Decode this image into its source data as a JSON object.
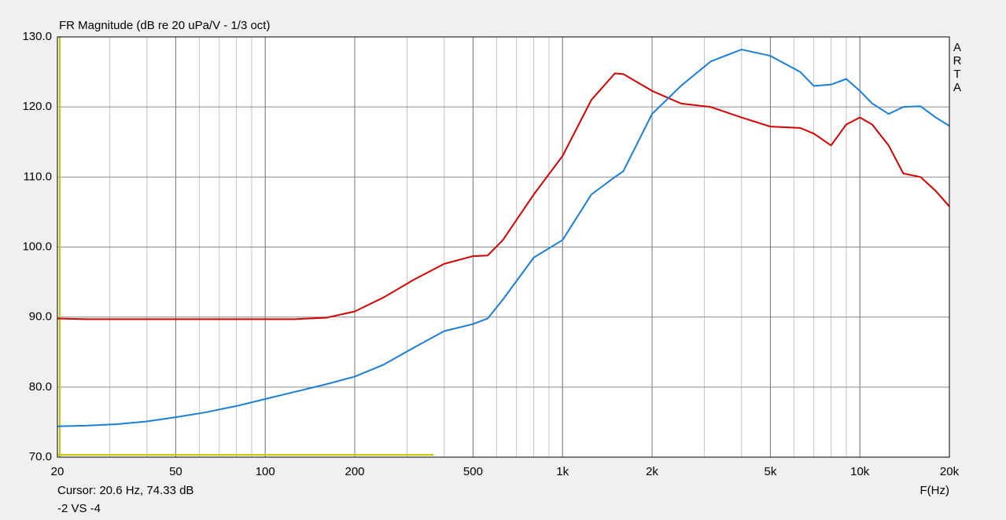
{
  "chart_data": {
    "type": "line",
    "title": "FR Magnitude (dB re 20 uPa/V - 1/3 oct)",
    "x_label": "F(Hz)",
    "watermark": "ARTA",
    "cursor_text": "Cursor: 20.6 Hz, 74.33 dB",
    "status_text": "-2 VS -4",
    "log_x": true,
    "grid": true,
    "xlim": [
      20,
      20000
    ],
    "ylim": [
      70,
      130
    ],
    "xticks": [
      20,
      50,
      100,
      200,
      500,
      {
        "value": 1000,
        "label": "1k"
      },
      {
        "value": 2000,
        "label": "2k"
      },
      {
        "value": 5000,
        "label": "5k"
      },
      {
        "value": 10000,
        "label": "10k"
      },
      {
        "value": 20000,
        "label": "20k"
      }
    ],
    "yticks": [
      {
        "value": 70,
        "label": "70.0"
      },
      {
        "value": 80,
        "label": "80.0"
      },
      {
        "value": 90,
        "label": "90.0"
      },
      {
        "value": 100,
        "label": "100.0"
      },
      {
        "value": 110,
        "label": "110.0"
      },
      {
        "value": 120,
        "label": "120.0"
      },
      {
        "value": 130,
        "label": "130.0"
      }
    ],
    "x": [
      20,
      25,
      31.5,
      40,
      50,
      63,
      80,
      100,
      125,
      160,
      200,
      250,
      315,
      400,
      500,
      560,
      630,
      800,
      1000,
      1250,
      1500,
      1600,
      2000,
      2500,
      3150,
      4000,
      5000,
      6300,
      7000,
      8000,
      9000,
      10000,
      11000,
      12500,
      14000,
      16000,
      18000,
      20000
    ],
    "series": [
      {
        "color": "#d40000",
        "values": [
          89.8,
          89.7,
          89.7,
          89.7,
          89.7,
          89.7,
          89.7,
          89.7,
          89.7,
          89.9,
          90.8,
          92.8,
          95.3,
          97.6,
          98.7,
          98.8,
          101,
          107.5,
          113,
          121,
          124.8,
          124.7,
          122.3,
          120.5,
          120,
          118.5,
          117.2,
          117,
          116.2,
          114.5,
          117.5,
          118.5,
          117.5,
          114.5,
          110.5,
          110,
          108,
          105.8
        ]
      },
      {
        "color": "#1a7fd6",
        "values": [
          74.4,
          74.5,
          74.7,
          75.1,
          75.7,
          76.4,
          77.3,
          78.3,
          79.3,
          80.4,
          81.5,
          83.2,
          85.6,
          88,
          89,
          89.8,
          92.5,
          98.5,
          101,
          107.5,
          110,
          110.8,
          119,
          123,
          126.5,
          128.2,
          127.3,
          125,
          123,
          123.2,
          124,
          122.3,
          120.5,
          119,
          120,
          120.1,
          118.5,
          117.3
        ]
      }
    ]
  }
}
